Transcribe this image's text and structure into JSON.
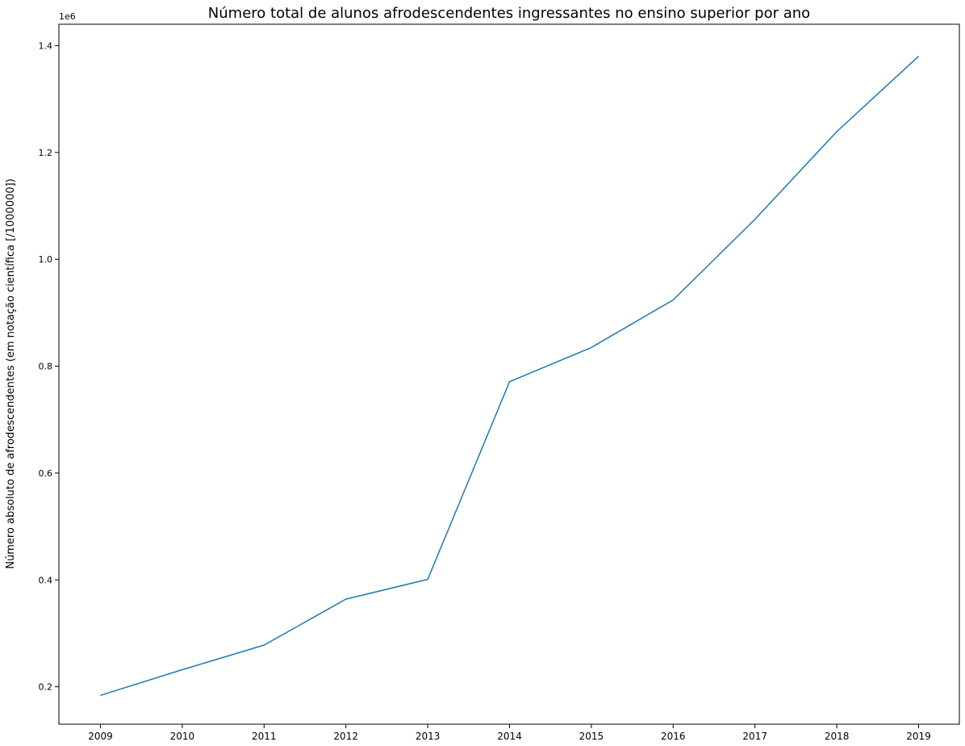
{
  "chart_data": {
    "type": "line",
    "title": "Número total de alunos afrodescendentes ingressantes no ensino superior por ano",
    "xlabel": "",
    "ylabel": "Número absoluto de afrodescendentes (em notação científica [/1000000])",
    "offset_text": "1e6",
    "categories": [
      "2009",
      "2010",
      "2011",
      "2012",
      "2013",
      "2014",
      "2015",
      "2016",
      "2017",
      "2018",
      "2019"
    ],
    "yticks": [
      0.2,
      0.4,
      0.6,
      0.8,
      1.0,
      1.2,
      1.4
    ],
    "ytick_labels": [
      "0.2",
      "0.4",
      "0.6",
      "0.8",
      "1.0",
      "1.2",
      "1.4"
    ],
    "ylim": [
      0.13,
      1.44
    ],
    "grid": false,
    "series": [
      {
        "color": "#1f77b4",
        "values": [
          0.184,
          0.232,
          0.278,
          0.364,
          0.401,
          0.771,
          0.835,
          0.924,
          1.075,
          1.239,
          1.38
        ]
      }
    ]
  }
}
